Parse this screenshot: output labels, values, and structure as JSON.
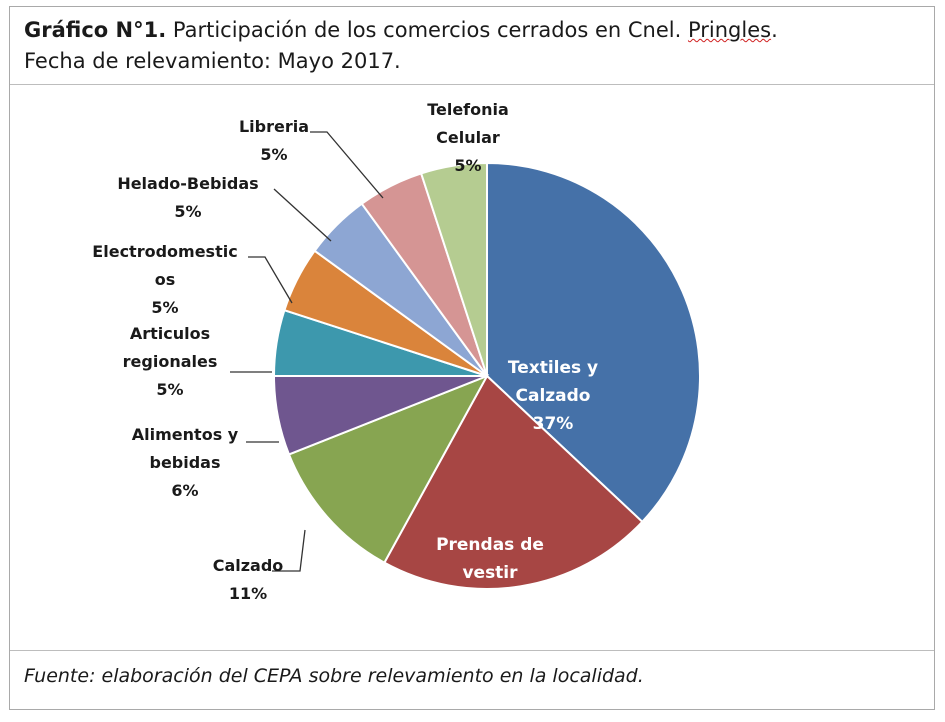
{
  "header": {
    "title_bold": "Gráfico N°1.",
    "title_rest": " Participación de los comercios cerrados en Cnel. ",
    "title_flagged": "Pringles",
    "title_end": ".",
    "subtitle": "Fecha de relevamiento: Mayo 2017."
  },
  "footer": {
    "source": "Fuente: elaboración del CEPA sobre relevamiento en la localidad."
  },
  "chart_data": {
    "type": "pie",
    "title": "",
    "start_angle_deg": 0,
    "direction": "clockwise",
    "slices": [
      {
        "label": "Textiles y Calzado",
        "label_lines": [
          "Textiles y",
          "Calzado"
        ],
        "value": 37,
        "display": "37%",
        "color": "#4571a8",
        "label_inside": true
      },
      {
        "label": "Prendas de vestir",
        "label_lines": [
          "Prendas de",
          "vestir"
        ],
        "value": 21,
        "display": "21%",
        "color": "#a74644",
        "label_inside": true
      },
      {
        "label": "Calzado",
        "label_lines": [
          "Calzado"
        ],
        "value": 11,
        "display": "11%",
        "color": "#87a551",
        "label_inside": false
      },
      {
        "label": "Alimentos y bebidas",
        "label_lines": [
          "Alimentos  y",
          "bebidas"
        ],
        "value": 6,
        "display": "6%",
        "color": "#6f568f",
        "label_inside": false
      },
      {
        "label": "Articulos regionales",
        "label_lines": [
          "Articulos",
          "regionales"
        ],
        "value": 5,
        "display": "5%",
        "color": "#3d98ad",
        "label_inside": false
      },
      {
        "label": "Electrodomesticos",
        "label_lines": [
          "Electrodomestic",
          "os"
        ],
        "value": 5,
        "display": "5%",
        "color": "#da843b",
        "label_inside": false
      },
      {
        "label": "Helado-Bebidas",
        "label_lines": [
          "Helado-Bebidas"
        ],
        "value": 5,
        "display": "5%",
        "color": "#8da6d3",
        "label_inside": false
      },
      {
        "label": "Libreria",
        "label_lines": [
          "Libreria"
        ],
        "value": 5,
        "display": "5%",
        "color": "#d59594",
        "label_inside": false
      },
      {
        "label": "Telefonia Celular",
        "label_lines": [
          "Telefonia",
          "Celular"
        ],
        "value": 5,
        "display": "5%",
        "color": "#b5cc91",
        "label_inside": false
      }
    ]
  }
}
